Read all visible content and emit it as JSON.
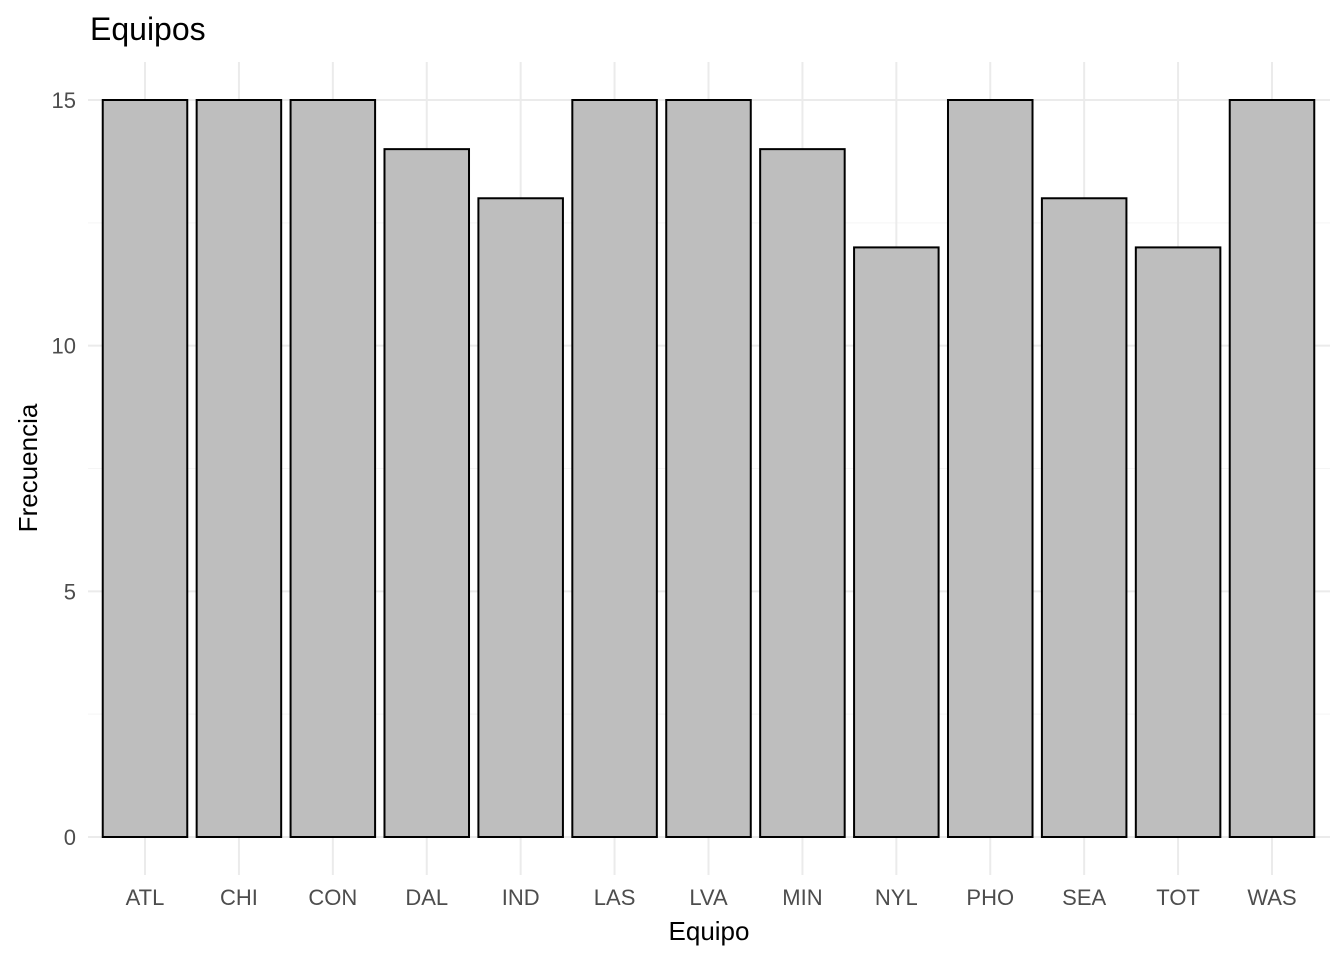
{
  "chart_data": {
    "type": "bar",
    "title": "Equipos",
    "xlabel": "Equipo",
    "ylabel": "Frecuencia",
    "categories": [
      "ATL",
      "CHI",
      "CON",
      "DAL",
      "IND",
      "LAS",
      "LVA",
      "MIN",
      "NYL",
      "PHO",
      "SEA",
      "TOT",
      "WAS"
    ],
    "values": [
      15,
      15,
      15,
      14,
      13,
      15,
      15,
      14,
      12,
      15,
      13,
      12,
      15
    ],
    "ylim": [
      0,
      15
    ],
    "yticks": [
      0,
      5,
      10,
      15
    ],
    "grid": true,
    "bar_fill": "#bebebe",
    "bar_outline": "#000000"
  }
}
